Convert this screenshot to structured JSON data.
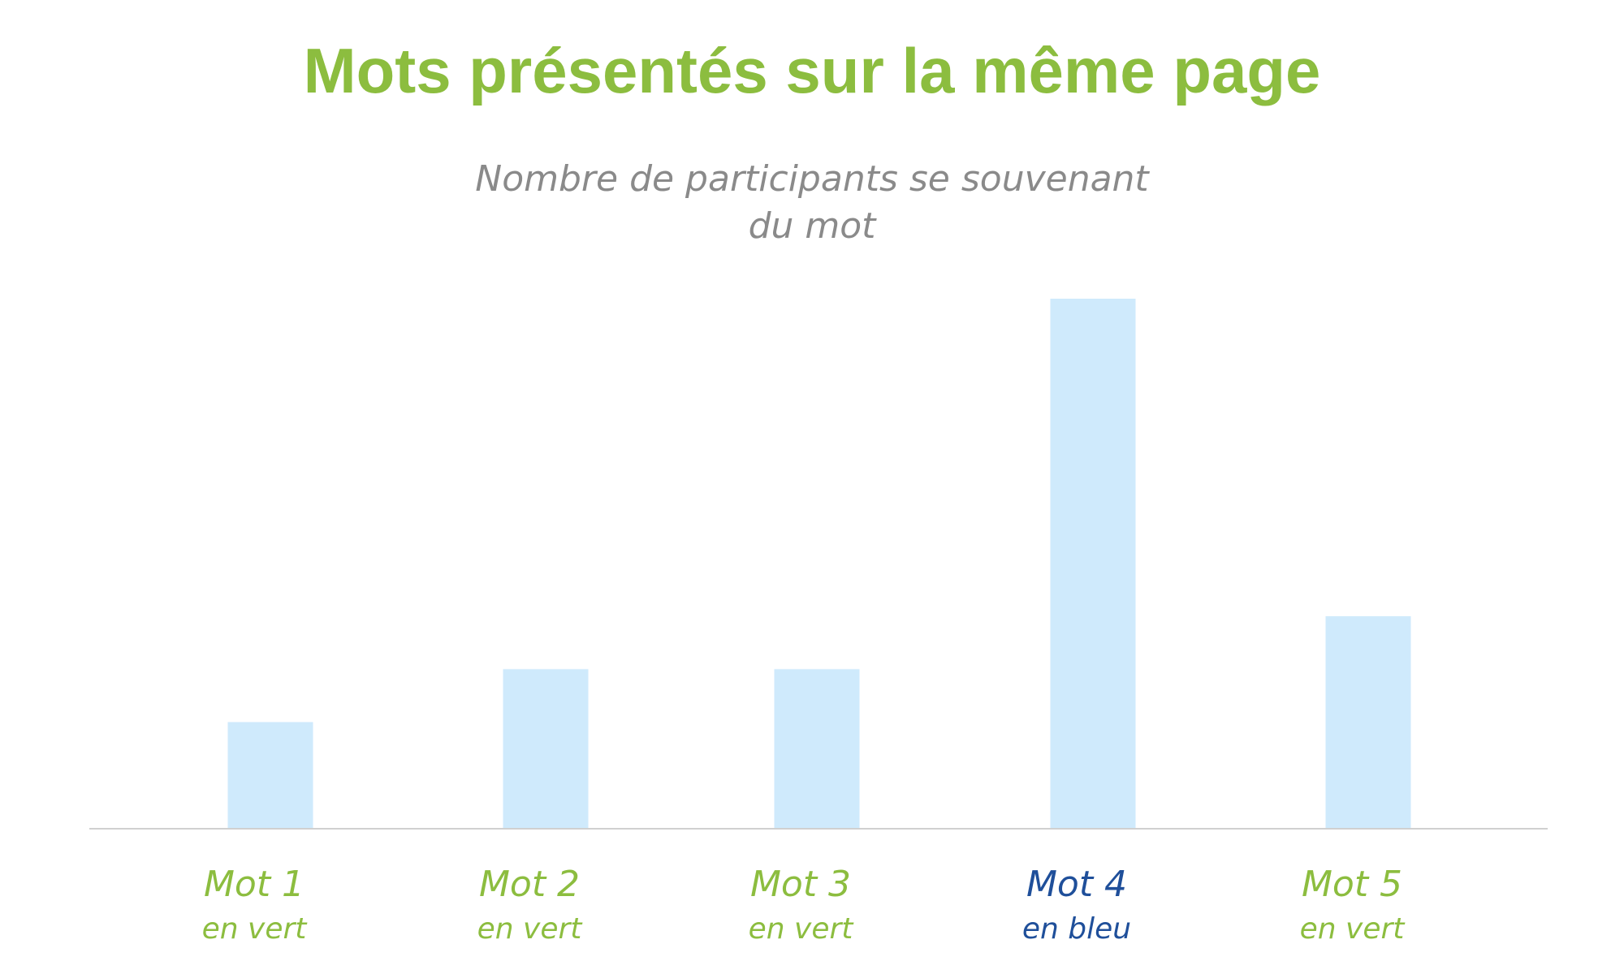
{
  "chart_data": {
    "type": "bar",
    "title": "Mots présentés sur la même page",
    "subtitle_lines": [
      "Nombre de participants se souvenant",
      "du mot"
    ],
    "categories": [
      "Mot 1",
      "Mot 2",
      "Mot 3",
      "Mot 4",
      "Mot 5"
    ],
    "category_sublabels": [
      "en vert",
      "en vert",
      "en vert",
      "en bleu",
      "en vert"
    ],
    "category_label_colors": [
      "#8cbd3f",
      "#8cbd3f",
      "#8cbd3f",
      "#1f4f9a",
      "#8cbd3f"
    ],
    "values": [
      2,
      3,
      3,
      10,
      4
    ],
    "ylim": [
      0,
      10
    ],
    "grid": false,
    "show_y_axis": false,
    "bar_color": "#cfeafc",
    "baseline_color": "#d0d0d0",
    "xlabel": "",
    "ylabel": ""
  },
  "colors": {
    "title": "#8cbd3f",
    "subtitle": "#8a8a8a"
  }
}
